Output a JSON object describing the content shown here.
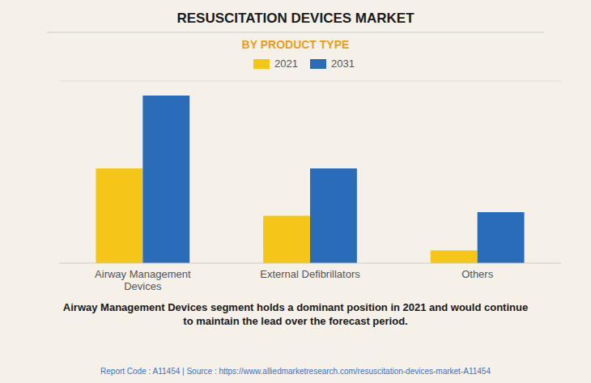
{
  "chart_data": {
    "type": "bar",
    "title": "RESUSCITATION DEVICES MARKET",
    "subtitle": "BY PRODUCT TYPE",
    "categories": [
      "Airway Management\nDevices",
      "External Defibrillators",
      "Others"
    ],
    "series": [
      {
        "name": "2021",
        "color": "#F5C518",
        "values": [
          52,
          26,
          7
        ]
      },
      {
        "name": "2031",
        "color": "#2B6CB8",
        "values": [
          92,
          52,
          28
        ]
      }
    ],
    "ylim": [
      0,
      100
    ],
    "legend": "top",
    "tick_labels": "x",
    "grid": false,
    "annotation": "Airway Management Devices segment holds a dominant position in 2021 and would continue\nto maintain the lead over the forecast period.",
    "footer": "Report Code : A11454  |  Source : https://www.alliedmarketresearch.com/resuscitation-devices-market-A11454"
  }
}
